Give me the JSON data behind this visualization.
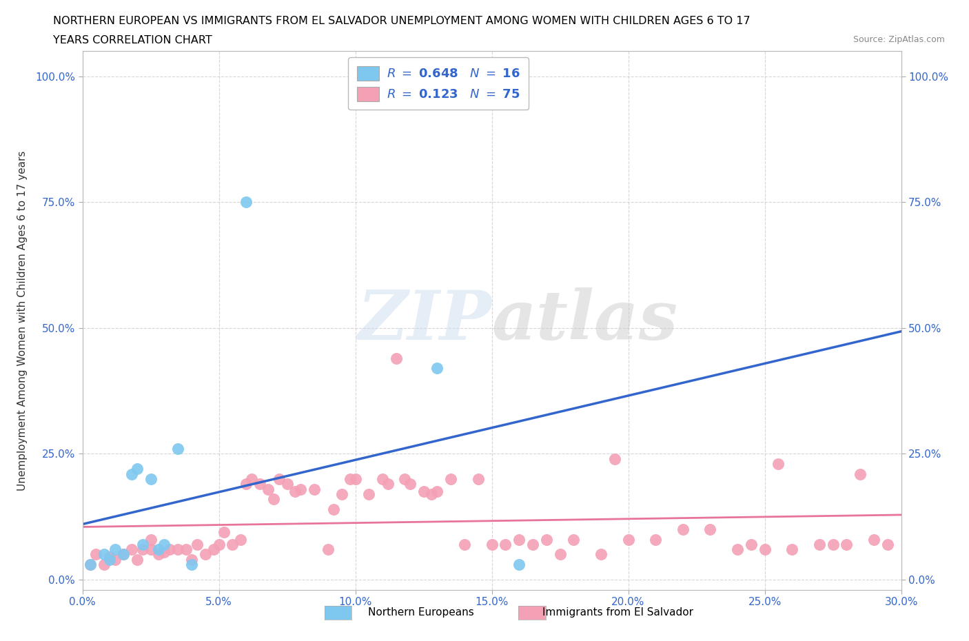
{
  "title_line1": "NORTHERN EUROPEAN VS IMMIGRANTS FROM EL SALVADOR UNEMPLOYMENT AMONG WOMEN WITH CHILDREN AGES 6 TO 17",
  "title_line2": "YEARS CORRELATION CHART",
  "source": "Source: ZipAtlas.com",
  "ylabel": "Unemployment Among Women with Children Ages 6 to 17 years",
  "xlim": [
    0.0,
    0.3
  ],
  "ylim": [
    -0.02,
    1.05
  ],
  "xtick_labels": [
    "0.0%",
    "5.0%",
    "10.0%",
    "15.0%",
    "20.0%",
    "25.0%",
    "30.0%"
  ],
  "xtick_values": [
    0.0,
    0.05,
    0.1,
    0.15,
    0.2,
    0.25,
    0.3
  ],
  "ytick_labels": [
    "0.0%",
    "25.0%",
    "50.0%",
    "75.0%",
    "100.0%"
  ],
  "ytick_values": [
    0.0,
    0.25,
    0.5,
    0.75,
    1.0
  ],
  "northern_color": "#7EC8F0",
  "salvador_color": "#F4A0B5",
  "trendline1_color": "#3366CC",
  "trendline2_color": "#E87499",
  "northern_x": [
    0.003,
    0.008,
    0.01,
    0.012,
    0.015,
    0.018,
    0.02,
    0.022,
    0.025,
    0.028,
    0.03,
    0.035,
    0.04,
    0.06,
    0.13,
    0.16
  ],
  "northern_y": [
    0.03,
    0.05,
    0.04,
    0.06,
    0.05,
    0.21,
    0.22,
    0.07,
    0.2,
    0.06,
    0.07,
    0.26,
    0.03,
    0.75,
    0.42,
    0.03
  ],
  "salvador_x": [
    0.003,
    0.005,
    0.008,
    0.01,
    0.012,
    0.015,
    0.018,
    0.02,
    0.022,
    0.025,
    0.025,
    0.028,
    0.03,
    0.032,
    0.035,
    0.038,
    0.04,
    0.042,
    0.045,
    0.048,
    0.05,
    0.052,
    0.055,
    0.058,
    0.06,
    0.062,
    0.065,
    0.068,
    0.07,
    0.072,
    0.075,
    0.078,
    0.08,
    0.085,
    0.09,
    0.092,
    0.095,
    0.098,
    0.1,
    0.105,
    0.11,
    0.112,
    0.115,
    0.118,
    0.12,
    0.125,
    0.128,
    0.13,
    0.135,
    0.14,
    0.145,
    0.15,
    0.155,
    0.16,
    0.165,
    0.17,
    0.175,
    0.18,
    0.19,
    0.195,
    0.2,
    0.21,
    0.22,
    0.23,
    0.24,
    0.245,
    0.25,
    0.255,
    0.26,
    0.27,
    0.275,
    0.28,
    0.285,
    0.29,
    0.295
  ],
  "salvador_y": [
    0.03,
    0.05,
    0.03,
    0.045,
    0.04,
    0.05,
    0.06,
    0.04,
    0.06,
    0.06,
    0.08,
    0.05,
    0.055,
    0.06,
    0.06,
    0.06,
    0.04,
    0.07,
    0.05,
    0.06,
    0.07,
    0.095,
    0.07,
    0.08,
    0.19,
    0.2,
    0.19,
    0.18,
    0.16,
    0.2,
    0.19,
    0.175,
    0.18,
    0.18,
    0.06,
    0.14,
    0.17,
    0.2,
    0.2,
    0.17,
    0.2,
    0.19,
    0.44,
    0.2,
    0.19,
    0.175,
    0.17,
    0.175,
    0.2,
    0.07,
    0.2,
    0.07,
    0.07,
    0.08,
    0.07,
    0.08,
    0.05,
    0.08,
    0.05,
    0.24,
    0.08,
    0.08,
    0.1,
    0.1,
    0.06,
    0.07,
    0.06,
    0.23,
    0.06,
    0.07,
    0.07,
    0.07,
    0.21,
    0.08,
    0.07
  ]
}
